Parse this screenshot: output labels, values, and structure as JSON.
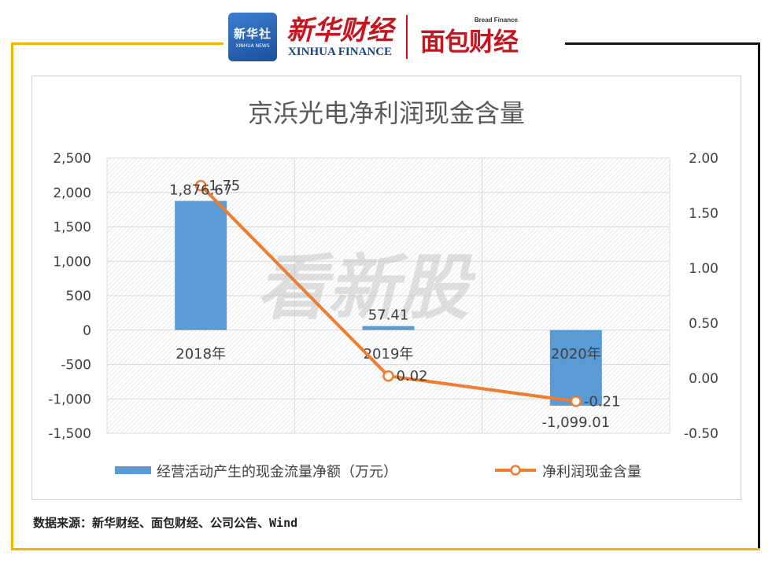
{
  "branding": {
    "xinhua_news_cn": "新华社",
    "xinhua_news_en": "XINHUA NEWS",
    "xinhua_finance_cn": "新华财经",
    "xinhua_finance_en": "XINHUA FINANCE",
    "bread_finance_en": "Bread Finance",
    "bread_finance_cn": "面包财经"
  },
  "watermark": "看新股",
  "source": "数据来源：新华财经、面包财经、公司公告、Wind",
  "colors": {
    "frame": "#f5b400",
    "bar": "#5b9bd5",
    "line": "#ed7d31",
    "brand_red": "#c8141e",
    "brand_blue": "#1a3f8f"
  },
  "chart_data": {
    "type": "bar",
    "title": "京浜光电净利润现金含量",
    "categories": [
      "2018年",
      "2019年",
      "2020年"
    ],
    "series": [
      {
        "name": "经营活动产生的现金流量净额（万元）",
        "type": "bar",
        "axis": "left",
        "values": [
          1876.67,
          57.41,
          -1099.01
        ],
        "labels": [
          "1,876.67",
          "57.41",
          "-1,099.01"
        ]
      },
      {
        "name": "净利润现金含量",
        "type": "line",
        "axis": "right",
        "values": [
          1.75,
          0.02,
          -0.21
        ],
        "labels": [
          "1.75",
          "0.02",
          "-0.21"
        ]
      }
    ],
    "left_axis": {
      "min": -1500,
      "max": 2500,
      "ticks": [
        "2,500",
        "2,000",
        "1,500",
        "1,000",
        "500",
        "0",
        "-500",
        "-1,000",
        "-1,500"
      ],
      "tick_values": [
        2500,
        2000,
        1500,
        1000,
        500,
        0,
        -500,
        -1000,
        -1500
      ]
    },
    "right_axis": {
      "min": -0.5,
      "max": 2.0,
      "ticks": [
        "2.00",
        "1.50",
        "1.00",
        "0.50",
        "0.00",
        "-0.50"
      ],
      "tick_values": [
        2.0,
        1.5,
        1.0,
        0.5,
        0.0,
        -0.5
      ]
    },
    "grid": true,
    "legend_position": "bottom"
  }
}
